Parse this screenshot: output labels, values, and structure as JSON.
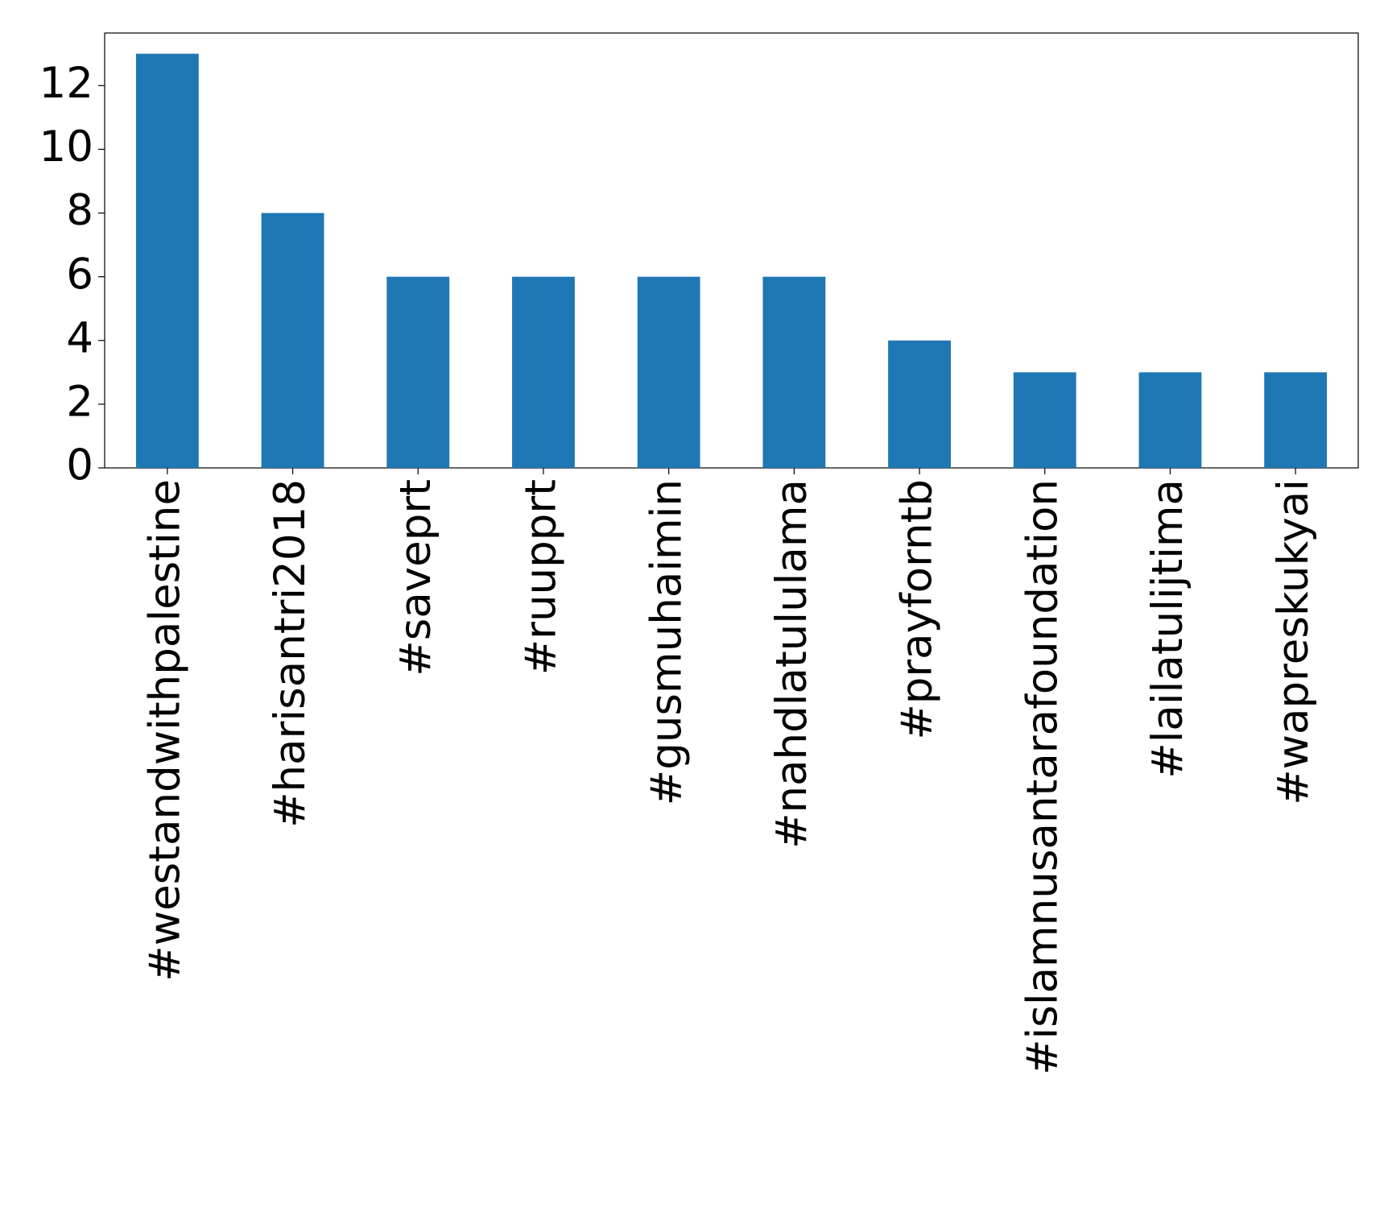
{
  "chart_data": {
    "type": "bar",
    "categories": [
      "#westandwithpalestine",
      "#harisantri2018",
      "#saveprt",
      "#ruupprt",
      "#gusmuhaimin",
      "#nahdlatululama",
      "#prayforntb",
      "#islamnusantarafoundation",
      "#lailatulijtima",
      "#wapreskukyai"
    ],
    "values": [
      13,
      8,
      6,
      6,
      6,
      6,
      4,
      3,
      3,
      3
    ],
    "color": "#1f77b4",
    "ylim": [
      0,
      13.65
    ],
    "yticks": [
      0,
      2,
      4,
      6,
      8,
      10,
      12
    ],
    "grid": false
  }
}
